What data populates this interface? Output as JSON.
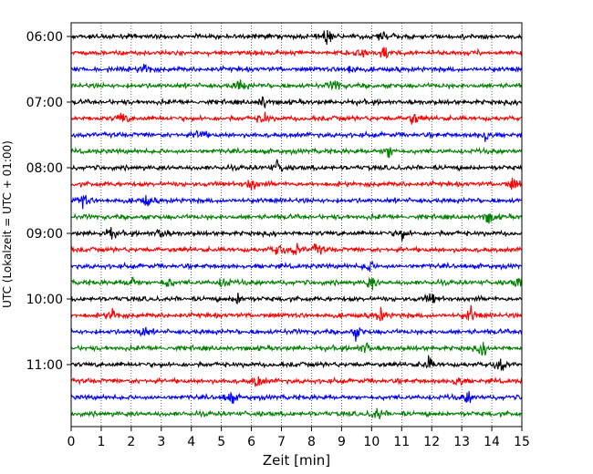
{
  "chart_data": {
    "type": "line",
    "title": "",
    "xlabel": "Zeit  [min]",
    "ylabel": "UTC (Lokalzeit = UTC + 01:00)",
    "xlim": [
      0,
      15
    ],
    "xticks": [
      0,
      1,
      2,
      3,
      4,
      5,
      6,
      7,
      8,
      9,
      10,
      11,
      12,
      13,
      14,
      15
    ],
    "x_grid": "dotted vertical lines at each minute",
    "trace_interval_minutes": 15,
    "start_time": "06:00",
    "y_tick_labels": [
      "06:00",
      "07:00",
      "08:00",
      "09:00",
      "10:00",
      "11:00"
    ],
    "trace_colors": [
      "#000000",
      "#ff0000",
      "#0000ff",
      "#008000"
    ],
    "series": [
      {
        "start": "06:00",
        "color": "#000000",
        "events_min": [
          8.5,
          10.4
        ]
      },
      {
        "start": "06:15",
        "color": "#ff0000",
        "events_min": [
          9.7,
          10.4
        ]
      },
      {
        "start": "06:30",
        "color": "#0000ff",
        "events_min": [
          2.5,
          9.3
        ]
      },
      {
        "start": "06:45",
        "color": "#008000",
        "events_min": [
          5.6,
          8.8
        ]
      },
      {
        "start": "07:00",
        "color": "#000000",
        "events_min": [
          6.4
        ]
      },
      {
        "start": "07:15",
        "color": "#ff0000",
        "events_min": [
          1.7,
          6.4,
          11.4
        ]
      },
      {
        "start": "07:30",
        "color": "#0000ff",
        "events_min": [
          4.3,
          13.8
        ]
      },
      {
        "start": "07:45",
        "color": "#008000",
        "events_min": [
          10.6
        ]
      },
      {
        "start": "08:00",
        "color": "#000000",
        "events_min": [
          6.9
        ]
      },
      {
        "start": "08:15",
        "color": "#ff0000",
        "events_min": [
          6.0,
          14.7
        ]
      },
      {
        "start": "08:30",
        "color": "#0000ff",
        "events_min": [
          0.4,
          2.5
        ]
      },
      {
        "start": "08:45",
        "color": "#008000",
        "events_min": [
          13.9
        ]
      },
      {
        "start": "09:00",
        "color": "#000000",
        "events_min": [
          1.3,
          3.0,
          11.0
        ]
      },
      {
        "start": "09:15",
        "color": "#ff0000",
        "events_min": [
          6.9,
          7.5,
          8.2
        ]
      },
      {
        "start": "09:30",
        "color": "#0000ff",
        "events_min": [
          9.9
        ]
      },
      {
        "start": "09:45",
        "color": "#008000",
        "events_min": [
          2.0,
          3.2,
          5.1,
          10.0,
          14.9
        ]
      },
      {
        "start": "10:00",
        "color": "#000000",
        "events_min": [
          5.6,
          12.0
        ]
      },
      {
        "start": "10:15",
        "color": "#ff0000",
        "events_min": [
          1.4,
          10.3,
          13.3
        ]
      },
      {
        "start": "10:30",
        "color": "#0000ff",
        "events_min": [
          2.4,
          9.5
        ]
      },
      {
        "start": "10:45",
        "color": "#008000",
        "events_min": [
          9.8,
          13.7
        ]
      },
      {
        "start": "11:00",
        "color": "#000000",
        "events_min": [
          11.9,
          14.3
        ]
      },
      {
        "start": "11:15",
        "color": "#ff0000",
        "events_min": [
          6.2,
          12.9
        ]
      },
      {
        "start": "11:30",
        "color": "#0000ff",
        "events_min": [
          5.3,
          13.2
        ]
      },
      {
        "start": "11:45",
        "color": "#008000",
        "events_min": [
          10.2
        ]
      }
    ]
  }
}
